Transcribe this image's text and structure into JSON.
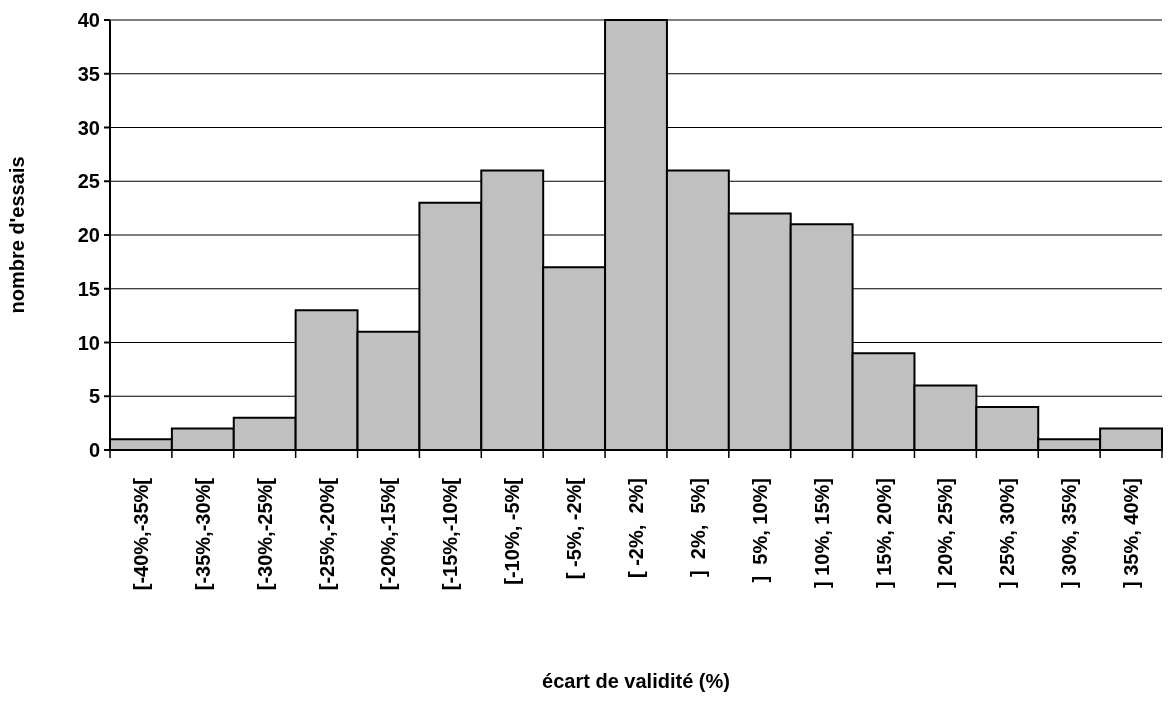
{
  "chart_data": {
    "type": "bar",
    "xlabel": "écart de validité (%)",
    "ylabel": "nombre d'essais",
    "categories": [
      "[-40%,-35%[",
      "[-35%,-30%[",
      "[-30%,-25%[",
      "[-25%,-20%[",
      "[-20%,-15%[",
      "[-15%,-10%[",
      "[-10%, -5%[",
      "[ -5%, -2%[",
      "[ -2%,  2%]",
      "]  2%,  5%]",
      "]  5%, 10%]",
      "] 10%, 15%]",
      "] 15%, 20%]",
      "] 20%, 25%]",
      "] 25%, 30%]",
      "] 30%, 35%]",
      "] 35%, 40%]"
    ],
    "values": [
      1,
      2,
      3,
      13,
      11,
      23,
      26,
      17,
      40,
      26,
      22,
      21,
      9,
      6,
      4,
      1,
      2
    ],
    "color": "#c0c0c0",
    "ylim": [
      0,
      40
    ],
    "yticks": [
      0,
      5,
      10,
      15,
      20,
      25,
      30,
      35,
      40
    ],
    "grid": "y"
  }
}
